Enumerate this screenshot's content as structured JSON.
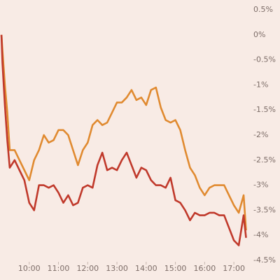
{
  "chart_data": {
    "type": "line",
    "x": [
      543,
      545,
      550,
      555,
      560,
      570,
      580,
      590,
      600,
      610,
      620,
      630,
      640,
      650,
      660,
      670,
      680,
      690,
      700,
      710,
      720,
      730,
      740,
      750,
      760,
      770,
      780,
      790,
      800,
      810,
      820,
      830,
      840,
      850,
      860,
      870,
      880,
      890,
      900,
      910,
      920,
      930,
      940,
      950,
      960,
      970,
      980,
      990,
      1000,
      1010,
      1020,
      1030,
      1040,
      1045
    ],
    "series": [
      {
        "color": "#e08a30",
        "values": [
          0,
          -0.3,
          -1.0,
          -1.55,
          -2.3,
          -2.3,
          -2.5,
          -2.7,
          -2.9,
          -2.5,
          -2.3,
          -2.0,
          -2.15,
          -2.1,
          -1.9,
          -1.9,
          -2.0,
          -2.3,
          -2.6,
          -2.3,
          -2.15,
          -1.8,
          -1.7,
          -1.8,
          -1.75,
          -1.55,
          -1.35,
          -1.35,
          -1.25,
          -1.1,
          -1.3,
          -1.25,
          -1.4,
          -1.1,
          -1.05,
          -1.45,
          -1.7,
          -1.75,
          -1.7,
          -1.9,
          -2.3,
          -2.65,
          -2.8,
          -3.05,
          -3.2,
          -3.05,
          -3.0,
          -3.0,
          -3.0,
          -3.2,
          -3.4,
          -3.55,
          -3.2,
          -3.9
        ]
      },
      {
        "color": "#c0392b",
        "values": [
          0,
          -0.55,
          -1.4,
          -2.1,
          -2.65,
          -2.5,
          -2.7,
          -2.9,
          -3.35,
          -3.5,
          -3.0,
          -3.0,
          -3.05,
          -3.0,
          -3.15,
          -3.35,
          -3.2,
          -3.4,
          -3.35,
          -3.05,
          -3.0,
          -3.05,
          -2.6,
          -2.35,
          -2.7,
          -2.65,
          -2.7,
          -2.5,
          -2.35,
          -2.6,
          -2.85,
          -2.65,
          -2.7,
          -2.9,
          -3.0,
          -3.0,
          -3.05,
          -2.85,
          -3.3,
          -3.35,
          -3.5,
          -3.7,
          -3.55,
          -3.6,
          -3.6,
          -3.55,
          -3.55,
          -3.6,
          -3.6,
          -3.85,
          -4.1,
          -4.2,
          -3.6,
          -4.05
        ]
      }
    ],
    "xlim": [
      540,
      1050
    ],
    "xticks": [
      {
        "value": 600,
        "label": "10:00"
      },
      {
        "value": 660,
        "label": "11:00"
      },
      {
        "value": 720,
        "label": "12:00"
      },
      {
        "value": 780,
        "label": "13:00"
      },
      {
        "value": 840,
        "label": "14:00"
      },
      {
        "value": 900,
        "label": "15:00"
      },
      {
        "value": 960,
        "label": "16:00"
      },
      {
        "value": 1020,
        "label": "17:00"
      }
    ],
    "ylim": [
      -4.5,
      0.5
    ],
    "yticks": [
      {
        "value": 0.5,
        "label": "0.5%"
      },
      {
        "value": 0,
        "label": "0%"
      },
      {
        "value": -0.5,
        "label": "-0.5%"
      },
      {
        "value": -1,
        "label": "-1%"
      },
      {
        "value": -1.5,
        "label": "-1.5%"
      },
      {
        "value": -2,
        "label": "-2%"
      },
      {
        "value": -2.5,
        "label": "-2.5%"
      },
      {
        "value": -3,
        "label": "-3%"
      },
      {
        "value": -3.5,
        "label": "-3.5%"
      },
      {
        "value": -4,
        "label": "-4%"
      },
      {
        "value": -4.5,
        "label": "-4.5%"
      }
    ],
    "grid": false
  }
}
